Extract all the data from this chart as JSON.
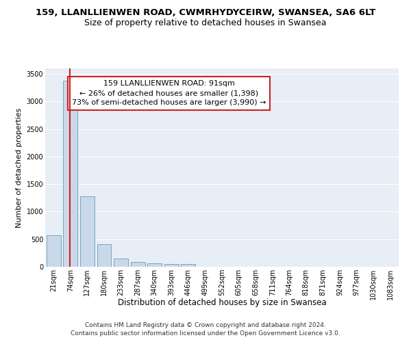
{
  "title": "159, LLANLLIENWEN ROAD, CWMRHYDYCEIRW, SWANSEA, SA6 6LT",
  "subtitle": "Size of property relative to detached houses in Swansea",
  "xlabel": "Distribution of detached houses by size in Swansea",
  "ylabel": "Number of detached properties",
  "footer_line1": "Contains HM Land Registry data © Crown copyright and database right 2024.",
  "footer_line2": "Contains public sector information licensed under the Open Government Licence v3.0.",
  "annotation_line1": "159 LLANLLIENWEN ROAD: 91sqm",
  "annotation_line2": "← 26% of detached houses are smaller (1,398)",
  "annotation_line3": "73% of semi-detached houses are larger (3,990) →",
  "bar_color": "#c9d9ea",
  "bar_edge_color": "#6699bb",
  "vline_color": "#cc2222",
  "annotation_box_facecolor": "#ffffff",
  "annotation_box_edgecolor": "#cc2222",
  "categories": [
    "21sqm",
    "74sqm",
    "127sqm",
    "180sqm",
    "233sqm",
    "287sqm",
    "340sqm",
    "393sqm",
    "446sqm",
    "499sqm",
    "552sqm",
    "605sqm",
    "658sqm",
    "711sqm",
    "764sqm",
    "818sqm",
    "871sqm",
    "924sqm",
    "977sqm",
    "1030sqm",
    "1083sqm"
  ],
  "values": [
    570,
    3380,
    1280,
    410,
    155,
    90,
    65,
    55,
    45,
    0,
    0,
    0,
    0,
    0,
    0,
    0,
    0,
    0,
    0,
    0,
    0
  ],
  "ylim": [
    0,
    3600
  ],
  "yticks": [
    0,
    500,
    1000,
    1500,
    2000,
    2500,
    3000,
    3500
  ],
  "background_color": "#ffffff",
  "plot_bg_color": "#e8eef5",
  "grid_color": "#ffffff",
  "title_fontsize": 9.5,
  "subtitle_fontsize": 9,
  "ylabel_fontsize": 8,
  "xlabel_fontsize": 8.5,
  "tick_fontsize": 7,
  "annotation_fontsize": 8,
  "footer_fontsize": 6.5,
  "vline_x": 0.97
}
